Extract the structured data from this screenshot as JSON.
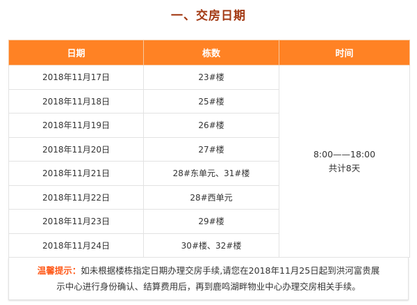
{
  "title": "一、交房日期",
  "table": {
    "headers": [
      "日期",
      "栋数",
      "时间"
    ],
    "rows": [
      {
        "date": "2018年11月17日",
        "building": "23#楼"
      },
      {
        "date": "2018年11月18日",
        "building": "25#楼"
      },
      {
        "date": "2018年11月19日",
        "building": "26#楼"
      },
      {
        "date": "2018年11月20日",
        "building": "27#楼"
      },
      {
        "date": "2018年11月21日",
        "building": "28#东单元、31#楼"
      },
      {
        "date": "2018年11月22日",
        "building": "28#西单元"
      },
      {
        "date": "2018年11月23日",
        "building": "29#楼"
      },
      {
        "date": "2018年11月24日",
        "building": "30#楼、32#楼"
      }
    ],
    "time_range": "8:00——18:00",
    "total": "共计8天"
  },
  "note": {
    "label": "温馨提示：",
    "line1": "如未根据楼栋指定日期办理交房手续,请您在2018年11月25日起到洪河富贵展",
    "line2": "示中心进行身份确认、结算费用后，再到鹿鸣湖畔物业中心办理交房相关手续。"
  },
  "colors": {
    "header": "#ff8224",
    "title": "#a33a14",
    "note_label": "#ff5a1a"
  }
}
